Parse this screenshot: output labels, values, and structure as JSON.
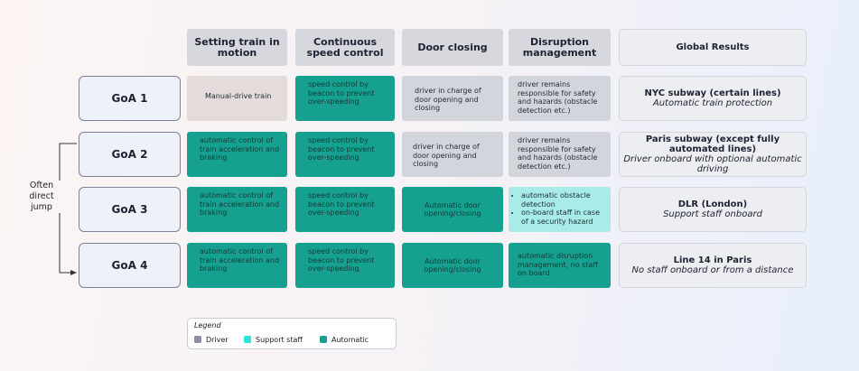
{
  "columns": [
    "Setting train in motion",
    "Continuous speed control",
    "Door closing",
    "Disruption management",
    "Global Results"
  ],
  "rows": [
    {
      "label": "GoA 1",
      "cells": [
        "Manual-drive train",
        "speed control by beacon to prevent over-speeding",
        "driver in charge of door opening and closing",
        "driver remains responsible for safety and hazards (obstacle detection etc.)"
      ],
      "result": {
        "title": "NYC subway (certain lines)",
        "subtitle": "Automatic train protection"
      }
    },
    {
      "label": "GoA 2",
      "cells": [
        "automatic control of train acceleration and braking",
        "speed control by beacon to prevent over-speeding",
        "driver in charge of door opening and closing",
        "driver remains responsible for safety and hazards (obstacle detection etc.)"
      ],
      "result": {
        "title": "Paris subway (except fully automated lines)",
        "subtitle": "Driver onboard with optional automatic driving"
      }
    },
    {
      "label": "GoA 3",
      "cells": [
        "automatic control of train acceleration and braking",
        "speed control by beacon to prevent over-speeding",
        "Automatic door opening/closing",
        [
          "automatic obstacle detection",
          "on-board staff in case of a security hazard"
        ]
      ],
      "result": {
        "title": "DLR (London)",
        "subtitle": "Support staff onboard"
      }
    },
    {
      "label": "GoA 4",
      "cells": [
        "automatic control of train acceleration and braking",
        "speed control by beacon to prevent over-speeding",
        "Automatic door opening/closing",
        "automatic disruption management, no staff on board"
      ],
      "result": {
        "title": "Line 14 in Paris",
        "subtitle": "No staff onboard or from a distance"
      }
    }
  ],
  "side_note": "Often direct jump",
  "legend": {
    "title": "Legend",
    "items": [
      "Driver",
      "Support staff",
      "Automatic"
    ]
  }
}
